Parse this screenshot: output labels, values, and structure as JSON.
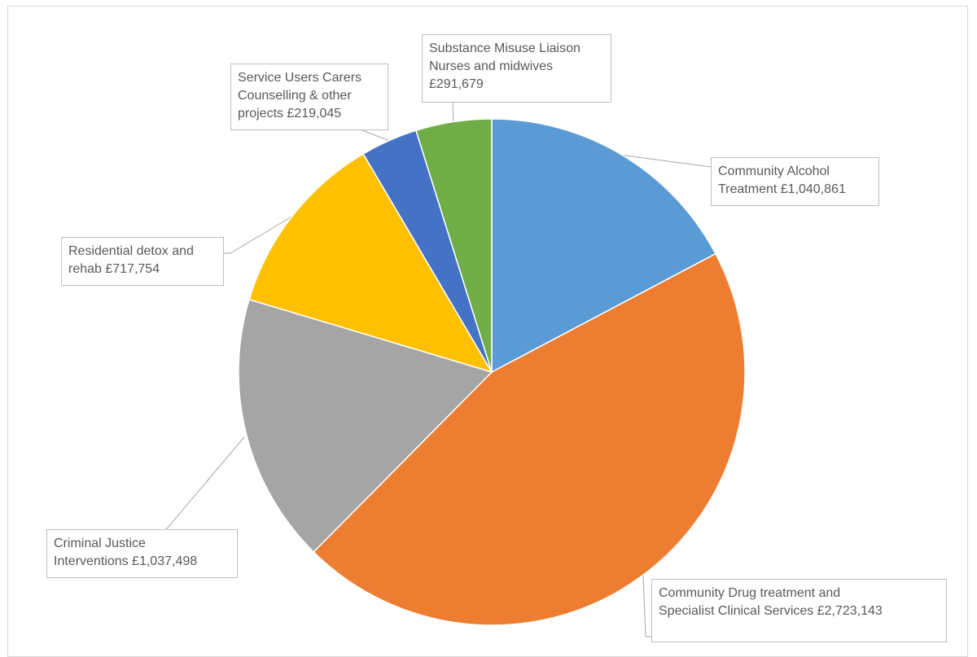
{
  "chart_data": {
    "type": "pie",
    "title": "",
    "slices": [
      {
        "label": "Community Alcohol\nTreatment £1,040,861",
        "value": 1040861,
        "color": "#5b9bd5"
      },
      {
        "label": "Community Drug treatment and\nSpecialist Clinical Services £2,723,143",
        "value": 2723143,
        "color": "#ed7d31"
      },
      {
        "label": "Criminal Justice\nInterventions £1,037,498",
        "value": 1037498,
        "color": "#a5a5a5"
      },
      {
        "label": "Residential detox and\nrehab £717,754",
        "value": 717754,
        "color": "#ffc000"
      },
      {
        "label": "Service Users Carers\nCounselling & other\nprojects £219,045",
        "value": 219045,
        "color": "#4472c4"
      },
      {
        "label": "Substance Misuse Liaison\nNurses and midwives\n£291,679",
        "value": 291679,
        "color": "#70ad47"
      }
    ],
    "start_angle": "12 o'clock",
    "direction": "clockwise",
    "legend": "none",
    "data_labels": "callout boxes with leader lines"
  }
}
